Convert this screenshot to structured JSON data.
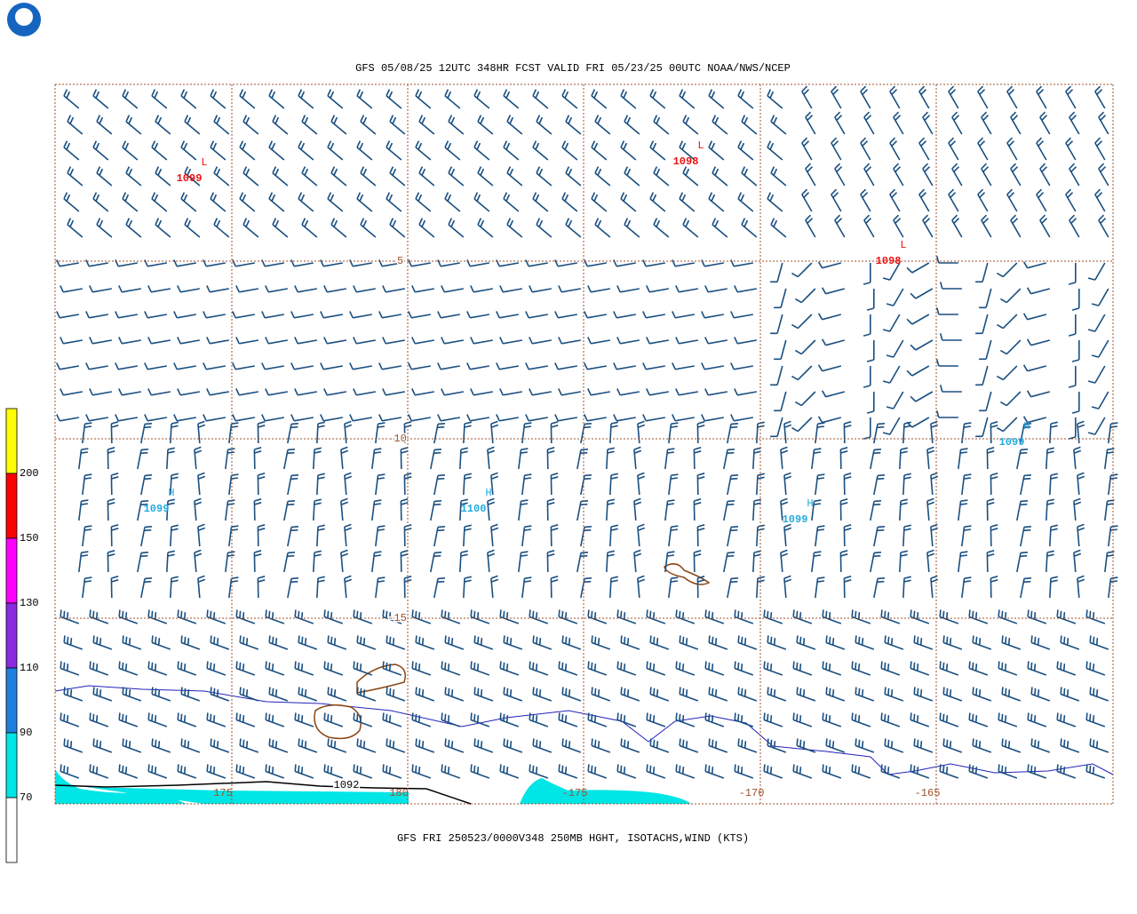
{
  "header": {
    "title": "GFS 05/08/25 12UTC 348HR FCST VALID FRI 05/23/25 00UTC NOAA/NWS/NCEP"
  },
  "footer": {
    "caption": "GFS FRI 250523/0000V348 250MB HGHT, ISOTACHS,WIND (KTS)"
  },
  "legend": {
    "labels": [
      "200",
      "150",
      "130",
      "110",
      "90",
      "70"
    ],
    "colors": [
      "#ffff00",
      "#ff0000",
      "#ff00ff",
      "#8a2be2",
      "#1e7fe0",
      "#00e5e5",
      "#ffffff"
    ]
  },
  "map": {
    "lat_labels": [
      "-5",
      "-10",
      "-15"
    ],
    "lon_labels": [
      "175",
      "180",
      "-175",
      "-170",
      "-165"
    ],
    "contour_label": "1092",
    "centers": [
      {
        "letter": "L",
        "label": "1099"
      },
      {
        "letter": "L",
        "label": "1098"
      },
      {
        "letter": "L",
        "label": "1098"
      },
      {
        "letter": "H",
        "label": "1099"
      },
      {
        "letter": "H",
        "label": "1100"
      },
      {
        "letter": "H",
        "label": "1099"
      },
      {
        "letter": "H",
        "label": "1099"
      }
    ],
    "low_color": "#ee1111",
    "high_color": "#22aadd",
    "barb_color": "#1a4f80",
    "grid_color": "#a0522d"
  }
}
